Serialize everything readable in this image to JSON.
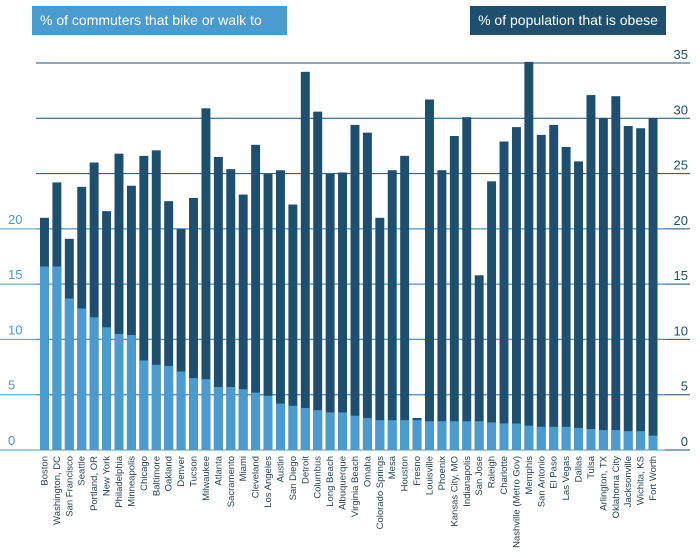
{
  "chart_data": {
    "type": "bar",
    "title": "",
    "legend": [
      {
        "name": "% of commuters that bike or walk to work",
        "color": "#4a9bd0",
        "axis": "left"
      },
      {
        "name": "% of population that is obese",
        "color": "#1e4f6e",
        "axis": "right"
      }
    ],
    "y_left": {
      "ticks": [
        0,
        5,
        10,
        15,
        20
      ],
      "range": [
        0,
        35
      ]
    },
    "y_right": {
      "ticks": [
        0,
        5,
        10,
        15,
        20,
        25,
        30,
        35
      ],
      "range": [
        0,
        35
      ]
    },
    "categories": [
      "Boston",
      "Washington, DC",
      "San Francisco",
      "Seattle",
      "Portland, OR",
      "New York",
      "Philadelphia",
      "Minneapolis",
      "Chicago",
      "Baltimore",
      "Oakland",
      "Denver",
      "Tucson",
      "Milwaukee",
      "Atlanta",
      "Sacramento",
      "Miami",
      "Cleveland",
      "Los Angeles",
      "Austin",
      "San Diego",
      "Detroit",
      "Columbus",
      "Long Beach",
      "Albuquerque",
      "Virginia Beach",
      "Omaha",
      "Colorado Springs",
      "Mesa",
      "Houston",
      "Fresno",
      "Louisville",
      "Phoenix",
      "Kansas City, MO",
      "Indianapolis",
      "San Jose",
      "Raleigh",
      "Charlotte",
      "Nashville (Metro Gov)",
      "Memphis",
      "San Antonio",
      "El Paso",
      "Las Vegas",
      "Dallas",
      "Tulsa",
      "Arlington, TX",
      "Oklahoma City",
      "Jacksonville",
      "Wichita, KS",
      "Fort Worth"
    ],
    "series": [
      {
        "name": "% of commuters that bike or walk to work",
        "axis": "left",
        "values": [
          16.6,
          16.6,
          13.7,
          12.8,
          12.0,
          11.1,
          10.5,
          10.4,
          8.1,
          7.7,
          7.6,
          7.1,
          6.5,
          6.4,
          5.7,
          5.7,
          5.5,
          5.2,
          4.9,
          4.2,
          4.0,
          3.8,
          3.6,
          3.4,
          3.4,
          3.1,
          2.9,
          2.7,
          2.7,
          2.7,
          2.7,
          2.6,
          2.6,
          2.6,
          2.6,
          2.6,
          2.5,
          2.4,
          2.4,
          2.2,
          2.1,
          2.1,
          2.1,
          2.0,
          1.9,
          1.8,
          1.8,
          1.7,
          1.7,
          1.3
        ]
      },
      {
        "name": "% of population that is obese",
        "axis": "right",
        "values": [
          21,
          24.2,
          19.1,
          23.8,
          26.0,
          21.6,
          26.8,
          23.9,
          26.6,
          27.1,
          22.5,
          20.0,
          22.8,
          30.9,
          26.5,
          25.4,
          23.1,
          27.6,
          25.0,
          25.3,
          22.2,
          34.2,
          30.6,
          25.0,
          25.1,
          29.4,
          28.7,
          21.0,
          25.3,
          26.6,
          2.9,
          31.7,
          25.3,
          28.4,
          30.1,
          15.8,
          24.3,
          27.9,
          29.2,
          35.1,
          28.5,
          29.4,
          27.4,
          26.1,
          32.1,
          30.0,
          32.0,
          29.3,
          29.1,
          30.0
        ]
      }
    ]
  }
}
